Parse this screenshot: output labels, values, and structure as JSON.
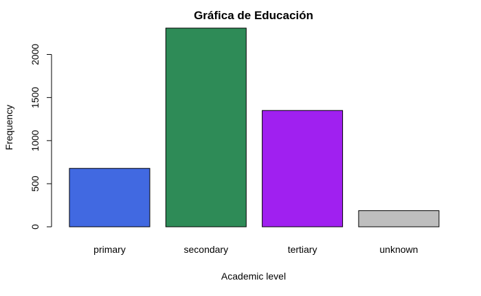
{
  "chart_data": {
    "type": "bar",
    "title": "Gráfica de Educación",
    "xlabel": "Academic level",
    "ylabel": "Frequency",
    "categories": [
      "primary",
      "secondary",
      "tertiary",
      "unknown"
    ],
    "values": [
      678,
      2306,
      1350,
      187
    ],
    "colors": [
      "#4169e1",
      "#2e8b57",
      "#a020f0",
      "#bebebe"
    ],
    "ylim": [
      0,
      2306
    ],
    "yticks": [
      0,
      500,
      1000,
      1500,
      2000
    ],
    "ytick_labels": [
      "0",
      "500",
      "1000",
      "1500",
      "2000"
    ],
    "grid": false,
    "legend": "none"
  }
}
